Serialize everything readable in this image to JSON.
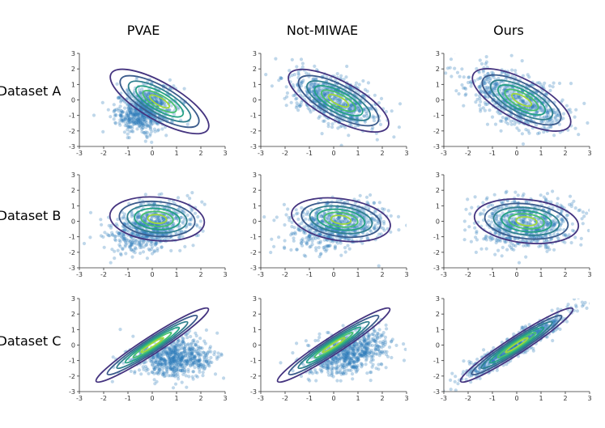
{
  "columns": [
    "PVAE",
    "Not-MIWAE",
    "Ours"
  ],
  "rows": [
    "Dataset A",
    "Dataset B",
    "Dataset C"
  ],
  "colors": {
    "points": "#2a7ab8",
    "contours": [
      "#44337f",
      "#3b5b8c",
      "#2f7f8e",
      "#24a184",
      "#48c16e",
      "#9fd93b"
    ]
  },
  "chart_data": [
    {
      "type": "scatter",
      "column": "PVAE",
      "row": "Dataset A",
      "xlim": [
        -3,
        3
      ],
      "ylim": [
        -3,
        3
      ],
      "xticks": [
        "-3",
        "-2",
        "-1",
        "0",
        "1",
        "2",
        "3"
      ],
      "yticks": [
        "3",
        "2",
        "1",
        "0",
        "-1",
        "-2",
        "-3"
      ],
      "points": {
        "cx": -0.3,
        "cy": -0.6,
        "sx": 0.6,
        "sy": 0.75,
        "rho": 0.25
      },
      "contours": {
        "cx": 0.3,
        "cy": -0.1,
        "rx": 2.3,
        "ry": 1.2,
        "angle": -30
      }
    },
    {
      "type": "scatter",
      "column": "Not-MIWAE",
      "row": "Dataset A",
      "xlim": [
        -3,
        3
      ],
      "ylim": [
        -3,
        3
      ],
      "xticks": [
        "-3",
        "-2",
        "-1",
        "0",
        "1",
        "2",
        "3"
      ],
      "yticks": [
        "3",
        "2",
        "1",
        "0",
        "-1",
        "-2",
        "-3"
      ],
      "points": {
        "cx": 0.0,
        "cy": 0.0,
        "sx": 0.9,
        "sy": 0.9,
        "rho": -0.55
      },
      "contours": {
        "cx": 0.2,
        "cy": -0.05,
        "rx": 2.3,
        "ry": 1.25,
        "angle": -28
      }
    },
    {
      "type": "scatter",
      "column": "Ours",
      "row": "Dataset A",
      "xlim": [
        -3,
        3
      ],
      "ylim": [
        -3,
        3
      ],
      "xticks": [
        "-3",
        "-2",
        "-1",
        "0",
        "1",
        "2",
        "3"
      ],
      "yticks": [
        "3",
        "2",
        "1",
        "0",
        "-1",
        "-2",
        "-3"
      ],
      "points": {
        "cx": 0.0,
        "cy": 0.0,
        "sx": 1.0,
        "sy": 1.0,
        "rho": -0.55
      },
      "contours": {
        "cx": 0.2,
        "cy": 0.0,
        "rx": 2.25,
        "ry": 1.3,
        "angle": -28
      }
    },
    {
      "type": "scatter",
      "column": "PVAE",
      "row": "Dataset B",
      "xlim": [
        -3,
        3
      ],
      "ylim": [
        -3,
        3
      ],
      "xticks": [
        "-3",
        "-2",
        "-1",
        "0",
        "1",
        "2",
        "3"
      ],
      "yticks": [
        "3",
        "2",
        "1",
        "0",
        "-1",
        "-2",
        "-3"
      ],
      "points": {
        "cx": -0.1,
        "cy": -0.4,
        "sx": 0.85,
        "sy": 0.8,
        "rho": 0.3
      },
      "contours": {
        "cx": 0.2,
        "cy": 0.15,
        "rx": 1.95,
        "ry": 1.4,
        "angle": -5
      }
    },
    {
      "type": "scatter",
      "column": "Not-MIWAE",
      "row": "Dataset B",
      "xlim": [
        -3,
        3
      ],
      "ylim": [
        -3,
        3
      ],
      "xticks": [
        "-3",
        "-2",
        "-1",
        "0",
        "1",
        "2",
        "3"
      ],
      "yticks": [
        "3",
        "2",
        "1",
        "0",
        "-1",
        "-2",
        "-3"
      ],
      "points": {
        "cx": 0.1,
        "cy": -0.2,
        "sx": 0.95,
        "sy": 0.75,
        "rho": 0.25
      },
      "contours": {
        "cx": 0.3,
        "cy": 0.1,
        "rx": 2.05,
        "ry": 1.35,
        "angle": -8
      }
    },
    {
      "type": "scatter",
      "column": "Ours",
      "row": "Dataset B",
      "xlim": [
        -3,
        3
      ],
      "ylim": [
        -3,
        3
      ],
      "xticks": [
        "-3",
        "-2",
        "-1",
        "0",
        "1",
        "2",
        "3"
      ],
      "yticks": [
        "3",
        "2",
        "1",
        "0",
        "-1",
        "-2",
        "-3"
      ],
      "points": {
        "cx": 0.3,
        "cy": -0.2,
        "sx": 1.0,
        "sy": 0.85,
        "rho": 0.0
      },
      "contours": {
        "cx": 0.4,
        "cy": 0.0,
        "rx": 2.15,
        "ry": 1.4,
        "angle": -6
      }
    },
    {
      "type": "scatter",
      "column": "PVAE",
      "row": "Dataset C",
      "xlim": [
        -3,
        3
      ],
      "ylim": [
        -3,
        3
      ],
      "xticks": [
        "-3",
        "-2",
        "-1",
        "0",
        "1",
        "2",
        "3"
      ],
      "yticks": [
        "3",
        "2",
        "1",
        "0",
        "-1",
        "-2",
        "-3"
      ],
      "points": {
        "cx": 0.9,
        "cy": -0.8,
        "sx": 0.85,
        "sy": 0.65,
        "rho": 0.1
      },
      "contours": {
        "cx": 0.0,
        "cy": 0.0,
        "rx": 2.75,
        "ry": 0.55,
        "angle": 33
      }
    },
    {
      "type": "scatter",
      "column": "Not-MIWAE",
      "row": "Dataset C",
      "xlim": [
        -3,
        3
      ],
      "ylim": [
        -3,
        3
      ],
      "xticks": [
        "-3",
        "-2",
        "-1",
        "0",
        "1",
        "2",
        "3"
      ],
      "yticks": [
        "3",
        "2",
        "1",
        "0",
        "-1",
        "-2",
        "-3"
      ],
      "points": {
        "cx": 0.6,
        "cy": -0.5,
        "sx": 0.85,
        "sy": 0.75,
        "rho": 0.35
      },
      "contours": {
        "cx": 0.0,
        "cy": 0.0,
        "rx": 2.75,
        "ry": 0.55,
        "angle": 33
      }
    },
    {
      "type": "scatter",
      "column": "Ours",
      "row": "Dataset C",
      "xlim": [
        -3,
        3
      ],
      "ylim": [
        -3,
        3
      ],
      "xticks": [
        "-3",
        "-2",
        "-1",
        "0",
        "1",
        "2",
        "3"
      ],
      "yticks": [
        "3",
        "2",
        "1",
        "0",
        "-1",
        "-2",
        "-3"
      ],
      "points": {
        "cx": 0.0,
        "cy": 0.0,
        "sx": 1.1,
        "sy": 1.1,
        "rho": 0.95
      },
      "contours": {
        "cx": 0.0,
        "cy": 0.0,
        "rx": 2.75,
        "ry": 0.55,
        "angle": 33
      }
    }
  ]
}
